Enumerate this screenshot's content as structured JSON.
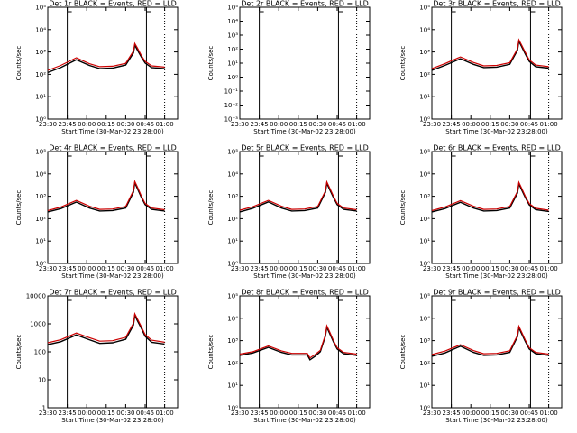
{
  "colors": {
    "events": "#000000",
    "lld": "#cc0000",
    "background": "#ffffff"
  },
  "x_ticks": [
    "23:30",
    "23:45",
    "00:00",
    "00:15",
    "00:30",
    "00:45",
    "01:00"
  ],
  "chart_data": [
    {
      "type": "line",
      "title": "Det 1r BLACK = Events, RED = LLD",
      "xlabel": "Start Time (30-Mar-02 23:28:00)",
      "ylabel": "Counts/sec",
      "xlim_min": [
        0,
        100
      ],
      "yscale": "log",
      "ylim": [
        1,
        100000
      ],
      "y_ticks": [
        "10⁰",
        "10¹",
        "10²",
        "10³",
        "10⁴",
        "10⁵"
      ],
      "x": [
        0,
        10,
        22,
        32,
        40,
        50,
        60,
        66,
        67,
        69,
        72,
        75,
        80,
        90
      ],
      "series": [
        {
          "name": "Events",
          "values": [
            120,
            200,
            450,
            250,
            180,
            190,
            260,
            900,
            2000,
            1200,
            600,
            320,
            200,
            180
          ]
        },
        {
          "name": "LLD",
          "values": [
            150,
            250,
            550,
            300,
            220,
            230,
            310,
            1100,
            2400,
            1500,
            700,
            380,
            240,
            210
          ]
        }
      ],
      "markers": {
        "solid": [
          15,
          76
        ],
        "dotted": [
          90
        ]
      }
    },
    {
      "type": "line",
      "title": "Det 2r BLACK = Events, RED = LLD",
      "xlabel": "Start Time (30-Mar-02 23:28:00)",
      "ylabel": "Counts/sec",
      "xlim_min": [
        0,
        100
      ],
      "yscale": "log",
      "ylim": [
        0.001,
        100000
      ],
      "y_ticks": [
        "10⁻³",
        "10⁻²",
        "10⁻¹",
        "10⁰",
        "10¹",
        "10²",
        "10³",
        "10⁴",
        "10⁵"
      ],
      "x": [],
      "series": [],
      "markers": {
        "solid": [
          15,
          76
        ],
        "dotted": [
          90
        ]
      }
    },
    {
      "type": "line",
      "title": "Det 3r BLACK = Events, RED = LLD",
      "xlabel": "Start Time (30-Mar-02 23:28:00)",
      "ylabel": "Counts/sec",
      "xlim_min": [
        0,
        100
      ],
      "yscale": "log",
      "ylim": [
        1,
        100000
      ],
      "y_ticks": [
        "10⁰",
        "10¹",
        "10²",
        "10³",
        "10⁴",
        "10⁵"
      ],
      "x": [
        0,
        10,
        22,
        32,
        40,
        50,
        60,
        66,
        67,
        69,
        72,
        75,
        80,
        90
      ],
      "series": [
        {
          "name": "Events",
          "values": [
            150,
            250,
            500,
            280,
            200,
            210,
            280,
            1200,
            3000,
            1800,
            800,
            380,
            220,
            190
          ]
        },
        {
          "name": "LLD",
          "values": [
            180,
            300,
            600,
            340,
            240,
            250,
            330,
            1400,
            3500,
            2100,
            950,
            440,
            260,
            220
          ]
        }
      ],
      "markers": {
        "solid": [
          15,
          76
        ],
        "dotted": [
          90
        ]
      }
    },
    {
      "type": "line",
      "title": "Det 4r BLACK = Events, RED = LLD",
      "xlabel": "Start Time (30-Mar-02 23:28:00)",
      "ylabel": "Counts/sec",
      "xlim_min": [
        0,
        100
      ],
      "yscale": "log",
      "ylim": [
        1,
        100000
      ],
      "y_ticks": [
        "10⁰",
        "10¹",
        "10²",
        "10³",
        "10⁴",
        "10⁵"
      ],
      "x": [
        0,
        10,
        22,
        32,
        40,
        50,
        60,
        66,
        67,
        69,
        72,
        75,
        80,
        90
      ],
      "series": [
        {
          "name": "Events",
          "values": [
            200,
            280,
            550,
            300,
            220,
            230,
            300,
            1500,
            4000,
            2200,
            900,
            420,
            260,
            220
          ]
        },
        {
          "name": "LLD",
          "values": [
            230,
            330,
            650,
            360,
            260,
            270,
            350,
            1800,
            4600,
            2600,
            1050,
            480,
            300,
            250
          ]
        }
      ],
      "markers": {
        "solid": [
          15,
          76
        ],
        "dotted": [
          90
        ]
      }
    },
    {
      "type": "line",
      "title": "Det 5r BLACK = Events, RED = LLD",
      "xlabel": "Start Time (30-Mar-02 23:28:00)",
      "ylabel": "Counts/sec",
      "xlim_min": [
        0,
        100
      ],
      "yscale": "log",
      "ylim": [
        1,
        100000
      ],
      "y_ticks": [
        "10⁰",
        "10¹",
        "10²",
        "10³",
        "10⁴",
        "10⁵"
      ],
      "x": [
        0,
        10,
        22,
        32,
        40,
        50,
        60,
        66,
        67,
        69,
        72,
        75,
        80,
        90
      ],
      "series": [
        {
          "name": "Events",
          "values": [
            200,
            290,
            560,
            300,
            220,
            230,
            300,
            1500,
            3800,
            2100,
            900,
            420,
            260,
            220
          ]
        },
        {
          "name": "LLD",
          "values": [
            240,
            340,
            660,
            360,
            260,
            270,
            350,
            1750,
            4400,
            2500,
            1050,
            480,
            300,
            250
          ]
        }
      ],
      "markers": {
        "solid": [
          15,
          76
        ],
        "dotted": [
          90
        ]
      }
    },
    {
      "type": "line",
      "title": "Det 6r BLACK = Events, RED = LLD",
      "xlabel": "Start Time (30-Mar-02 23:28:00)",
      "ylabel": "Counts/sec",
      "xlim_min": [
        0,
        100
      ],
      "yscale": "log",
      "ylim": [
        1,
        100000
      ],
      "y_ticks": [
        "10⁰",
        "10¹",
        "10²",
        "10³",
        "10⁴",
        "10⁵"
      ],
      "x": [
        0,
        10,
        22,
        32,
        40,
        50,
        60,
        66,
        67,
        69,
        72,
        75,
        80,
        90
      ],
      "series": [
        {
          "name": "Events",
          "values": [
            200,
            280,
            540,
            300,
            220,
            230,
            300,
            1400,
            3600,
            2000,
            880,
            410,
            250,
            210
          ]
        },
        {
          "name": "LLD",
          "values": [
            230,
            330,
            640,
            360,
            260,
            270,
            350,
            1650,
            4200,
            2400,
            1000,
            470,
            290,
            240
          ]
        }
      ],
      "markers": {
        "solid": [
          15,
          76
        ],
        "dotted": [
          90
        ]
      }
    },
    {
      "type": "line",
      "title": "Det 7r BLACK = Events, RED = LLD",
      "xlabel": "Start Time (30-Mar-02 23:28:00)",
      "ylabel": "Counts/sec",
      "xlim_min": [
        0,
        100
      ],
      "yscale": "log",
      "ylim": [
        1,
        10000
      ],
      "y_ticks": [
        "1",
        "10",
        "100",
        "1000",
        "10000"
      ],
      "x": [
        0,
        10,
        22,
        32,
        40,
        50,
        60,
        66,
        67,
        69,
        72,
        75,
        80,
        90
      ],
      "series": [
        {
          "name": "Events",
          "values": [
            180,
            230,
            400,
            270,
            200,
            210,
            280,
            900,
            2000,
            1300,
            700,
            360,
            220,
            190
          ]
        },
        {
          "name": "LLD",
          "values": [
            210,
            270,
            470,
            320,
            240,
            250,
            330,
            1050,
            2300,
            1500,
            800,
            410,
            260,
            220
          ]
        }
      ],
      "markers": {
        "solid": [
          15,
          76
        ],
        "dotted": [
          90
        ]
      }
    },
    {
      "type": "line",
      "title": "Det 8r BLACK = Events, RED = LLD",
      "xlabel": "Start Time (30-Mar-02 23:28:00)",
      "ylabel": "Counts/sec",
      "xlim_min": [
        0,
        100
      ],
      "yscale": "log",
      "ylim": [
        1,
        100000
      ],
      "y_ticks": [
        "10⁰",
        "10¹",
        "10²",
        "10³",
        "10⁴",
        "10⁵"
      ],
      "x": [
        0,
        10,
        22,
        32,
        40,
        52,
        54,
        58,
        62,
        66,
        67,
        69,
        72,
        75,
        80,
        90
      ],
      "series": [
        {
          "name": "Events",
          "values": [
            220,
            280,
            500,
            300,
            230,
            230,
            140,
            200,
            320,
            1600,
            4000,
            2200,
            900,
            420,
            260,
            220
          ]
        },
        {
          "name": "LLD",
          "values": [
            250,
            320,
            580,
            350,
            270,
            270,
            170,
            240,
            370,
            1850,
            4600,
            2600,
            1050,
            480,
            300,
            250
          ]
        }
      ],
      "markers": {
        "solid": [
          15,
          76
        ],
        "dotted": [
          90
        ]
      }
    },
    {
      "type": "line",
      "title": "Det 9r BLACK = Events, RED = LLD",
      "xlabel": "Start Time (30-Mar-02 23:28:00)",
      "ylabel": "Counts/sec",
      "xlim_min": [
        0,
        100
      ],
      "yscale": "log",
      "ylim": [
        1,
        100000
      ],
      "y_ticks": [
        "10⁰",
        "10¹",
        "10²",
        "10³",
        "10⁴",
        "10⁵"
      ],
      "x": [
        0,
        10,
        22,
        32,
        40,
        50,
        60,
        66,
        67,
        69,
        72,
        75,
        80,
        90
      ],
      "series": [
        {
          "name": "Events",
          "values": [
            200,
            280,
            560,
            300,
            220,
            230,
            300,
            1500,
            3800,
            2100,
            900,
            420,
            260,
            220
          ]
        },
        {
          "name": "LLD",
          "values": [
            240,
            340,
            660,
            360,
            260,
            270,
            350,
            1750,
            4400,
            2500,
            1050,
            480,
            300,
            250
          ]
        }
      ],
      "markers": {
        "solid": [
          15,
          76
        ],
        "dotted": [
          90
        ]
      }
    }
  ]
}
